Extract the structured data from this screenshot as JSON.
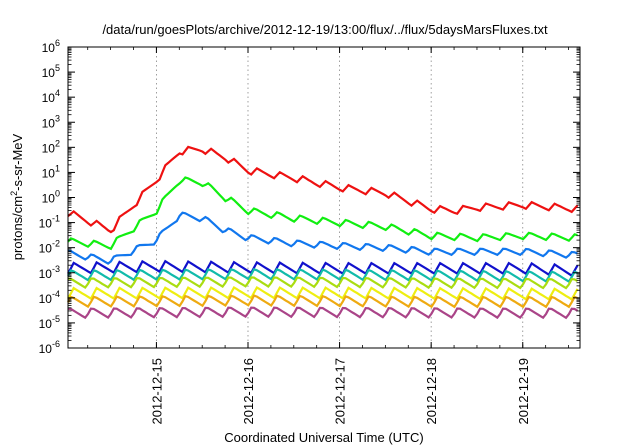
{
  "chart_data": {
    "type": "line",
    "title": "/data/run/goesPlots/archive/2012-12-19/13:00/flux/../flux/5daysMarsFluxes.txt",
    "xlabel": "Coordinated Universal Time (UTC)",
    "ylabel": {
      "before": "protons/cm",
      "sup": "2",
      "after": "-s-sr-MeV"
    },
    "x_axis": {
      "type": "date",
      "range": [
        "2012-12-14T00:50",
        "2012-12-19T15:00"
      ],
      "ticks": [
        "2012-12-15",
        "2012-12-16",
        "2012-12-17",
        "2012-12-18",
        "2012-12-19"
      ]
    },
    "y_axis": {
      "scale": "log",
      "base": "10",
      "range": [
        1e-06,
        1000000.0
      ],
      "tick_exponents": [
        "-6",
        "-5",
        "-4",
        "-3",
        "-2",
        "-1",
        "0",
        "1",
        "2",
        "3",
        "4",
        "5",
        "6"
      ]
    },
    "grid": {
      "x": true,
      "y": false
    },
    "legend": "none",
    "series": [
      {
        "color": "#ee1111",
        "points": [
          [
            "2012-12-14T00:50",
            0.25
          ],
          [
            "2012-12-14T12:00",
            0.05
          ],
          [
            "2012-12-15T00:00",
            5.0
          ],
          [
            "2012-12-15T06:00",
            70
          ],
          [
            "2012-12-15T12:00",
            85
          ],
          [
            "2012-12-15T18:00",
            40
          ],
          [
            "2012-12-16T00:00",
            12
          ],
          [
            "2012-12-16T12:00",
            6
          ],
          [
            "2012-12-17T00:00",
            2.5
          ],
          [
            "2012-12-17T12:00",
            1.5
          ],
          [
            "2012-12-18T00:00",
            0.35
          ],
          [
            "2012-12-18T06:00",
            0.3
          ],
          [
            "2012-12-18T12:00",
            0.4
          ],
          [
            "2012-12-19T00:00",
            0.5
          ],
          [
            "2012-12-19T15:00",
            0.35
          ]
        ]
      },
      {
        "color": "#11ee11",
        "points": [
          [
            "2012-12-14T00:50",
            0.018
          ],
          [
            "2012-12-14T12:00",
            0.012
          ],
          [
            "2012-12-15T00:00",
            0.3
          ],
          [
            "2012-12-15T06:00",
            5.0
          ],
          [
            "2012-12-15T12:00",
            4.0
          ],
          [
            "2012-12-15T18:00",
            1.0
          ],
          [
            "2012-12-16T00:00",
            0.3
          ],
          [
            "2012-12-16T12:00",
            0.15
          ],
          [
            "2012-12-17T00:00",
            0.1
          ],
          [
            "2012-12-17T12:00",
            0.07
          ],
          [
            "2012-12-18T00:00",
            0.03
          ],
          [
            "2012-12-18T12:00",
            0.025
          ],
          [
            "2012-12-19T00:00",
            0.03
          ],
          [
            "2012-12-19T15:00",
            0.025
          ]
        ]
      },
      {
        "color": "#1177ee",
        "points": [
          [
            "2012-12-14T00:50",
            0.006
          ],
          [
            "2012-12-14T12:00",
            0.003
          ],
          [
            "2012-12-15T00:00",
            0.02
          ],
          [
            "2012-12-15T06:00",
            0.2
          ],
          [
            "2012-12-15T12:00",
            0.15
          ],
          [
            "2012-12-15T18:00",
            0.05
          ],
          [
            "2012-12-16T00:00",
            0.025
          ],
          [
            "2012-12-16T12:00",
            0.015
          ],
          [
            "2012-12-17T00:00",
            0.012
          ],
          [
            "2012-12-17T12:00",
            0.01
          ],
          [
            "2012-12-18T00:00",
            0.007
          ],
          [
            "2012-12-19T00:00",
            0.007
          ],
          [
            "2012-12-19T15:00",
            0.005
          ]
        ]
      },
      {
        "color": "#1111cc",
        "points": [
          [
            "2012-12-14T00:50",
            0.0015
          ],
          [
            "2012-12-15T00:00",
            0.0018
          ],
          [
            "2012-12-16T00:00",
            0.0016
          ],
          [
            "2012-12-17T00:00",
            0.0015
          ],
          [
            "2012-12-18T00:00",
            0.0015
          ],
          [
            "2012-12-19T00:00",
            0.0015
          ],
          [
            "2012-12-19T15:00",
            0.0012
          ]
        ]
      },
      {
        "color": "#11bbaa",
        "points": [
          [
            "2012-12-14T00:50",
            0.0008
          ],
          [
            "2012-12-16T00:00",
            0.0009
          ],
          [
            "2012-12-18T00:00",
            0.0008
          ],
          [
            "2012-12-19T15:00",
            0.0007
          ]
        ]
      },
      {
        "color": "#aadd11",
        "points": [
          [
            "2012-12-14T00:50",
            0.0004
          ],
          [
            "2012-12-16T00:00",
            0.00045
          ],
          [
            "2012-12-18T00:00",
            0.0004
          ],
          [
            "2012-12-19T15:00",
            0.00038
          ]
        ]
      },
      {
        "color": "#eeee11",
        "points": [
          [
            "2012-12-14T00:50",
            0.00015
          ],
          [
            "2012-12-16T00:00",
            0.00016
          ],
          [
            "2012-12-18T00:00",
            0.00015
          ],
          [
            "2012-12-19T15:00",
            0.00014
          ]
        ]
      },
      {
        "color": "#eeaa11",
        "points": [
          [
            "2012-12-14T00:50",
            7e-05
          ],
          [
            "2012-12-16T00:00",
            8e-05
          ],
          [
            "2012-12-18T00:00",
            7e-05
          ],
          [
            "2012-12-19T15:00",
            7e-05
          ]
        ]
      },
      {
        "color": "#aa4488",
        "points": [
          [
            "2012-12-14T00:50",
            2.5e-05
          ],
          [
            "2012-12-16T00:00",
            2.8e-05
          ],
          [
            "2012-12-18T00:00",
            2.6e-05
          ],
          [
            "2012-12-19T15:00",
            2.5e-05
          ]
        ]
      }
    ]
  }
}
